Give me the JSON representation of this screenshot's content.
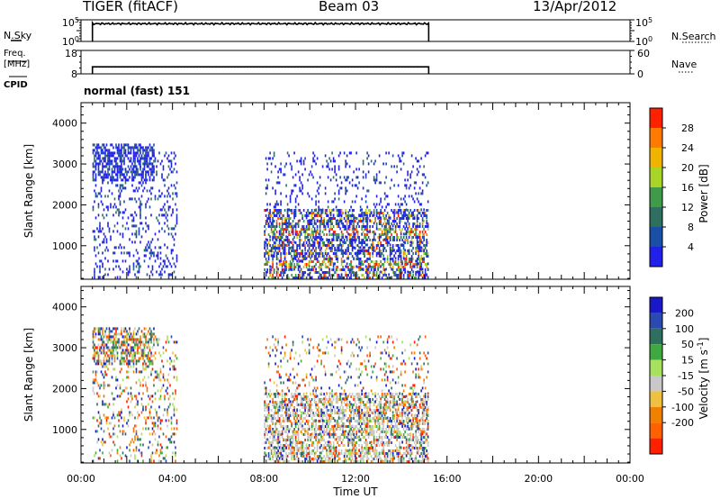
{
  "header": {
    "station": "TIGER (fitACF)",
    "beam": "Beam 03",
    "date": "13/Apr/2012"
  },
  "left_labels": {
    "nsky": "N.Sky",
    "freq": "Freq.",
    "freq_unit": "[MHz]",
    "cpid": "CPID"
  },
  "right_labels": {
    "nsearch": "N.Search",
    "nave": "Nave"
  },
  "cpid_text": "normal (fast) 151",
  "chart_data": [
    {
      "type": "line",
      "name": "noise-panel",
      "left_axis": {
        "ticks": [
          "10^0",
          "10^5"
        ]
      },
      "right_axis": {
        "ticks": [
          "10^0",
          "10^5"
        ]
      },
      "x_range_hours": [
        0,
        24
      ],
      "data_start_hour": 0.5,
      "data_end_hour": 15.2,
      "level_fraction": 0.82
    },
    {
      "type": "line",
      "name": "frequency-panel",
      "left_axis": {
        "ticks": [
          "8",
          "18"
        ],
        "range": [
          8,
          18
        ]
      },
      "right_axis": {
        "ticks": [
          "0",
          "60"
        ],
        "range": [
          0,
          60
        ]
      },
      "data_start_hour": 0.5,
      "data_end_hour": 15.2,
      "freq_level": 11,
      "nave_level": 17
    },
    {
      "type": "heatmap",
      "name": "power",
      "ylabel": "Slant Range [km]",
      "ylim": [
        180,
        4500
      ],
      "yticks": [
        1000,
        2000,
        3000,
        4000
      ],
      "colorbar": {
        "label": "Power [dB]",
        "ticks": [
          "4",
          "8",
          "12",
          "16",
          "20",
          "24",
          "28"
        ],
        "colors": [
          "#2020e8",
          "#1a4fa8",
          "#2e6f60",
          "#3f9a4a",
          "#a8d428",
          "#f0b400",
          "#ff7a00",
          "#ff2000"
        ]
      },
      "regions": [
        {
          "t": [
            0.5,
            3.2
          ],
          "r": [
            2600,
            3500
          ],
          "density": 0.5
        },
        {
          "t": [
            0.5,
            4.2
          ],
          "r": [
            200,
            3300
          ],
          "density": 0.18
        },
        {
          "t": [
            8.0,
            15.2
          ],
          "r": [
            200,
            1900
          ],
          "density": 0.5
        },
        {
          "t": [
            8.0,
            15.2
          ],
          "r": [
            200,
            3300
          ],
          "density": 0.12
        }
      ]
    },
    {
      "type": "heatmap",
      "name": "velocity",
      "ylabel": "Slant Range [km]",
      "xlabel": "Time UT",
      "ylim": [
        180,
        4500
      ],
      "yticks": [
        1000,
        2000,
        3000,
        4000
      ],
      "xticks": [
        "00:00",
        "04:00",
        "08:00",
        "12:00",
        "16:00",
        "20:00",
        "00:00"
      ],
      "colorbar": {
        "label": "Velocity [m s^-1]",
        "label_base": "Velocity",
        "label_unit": "[m s",
        "label_exp": "-1",
        "label_close": "]",
        "ticks": [
          "200",
          "100",
          "50",
          "15",
          "-15",
          "-50",
          "-100",
          "-200"
        ],
        "colors": [
          "#1818c8",
          "#2a4ab0",
          "#2e6f60",
          "#3fa840",
          "#a8e060",
          "#c8c8c8",
          "#f0c040",
          "#f08000",
          "#ff6000",
          "#ff2000"
        ]
      },
      "regions": [
        {
          "t": [
            0.5,
            3.2
          ],
          "r": [
            2600,
            3500
          ],
          "density": 0.5
        },
        {
          "t": [
            0.5,
            4.2
          ],
          "r": [
            200,
            3300
          ],
          "density": 0.18
        },
        {
          "t": [
            8.0,
            15.2
          ],
          "r": [
            200,
            1900
          ],
          "density": 0.5
        },
        {
          "t": [
            8.0,
            15.2
          ],
          "r": [
            200,
            3300
          ],
          "density": 0.12
        }
      ]
    }
  ]
}
